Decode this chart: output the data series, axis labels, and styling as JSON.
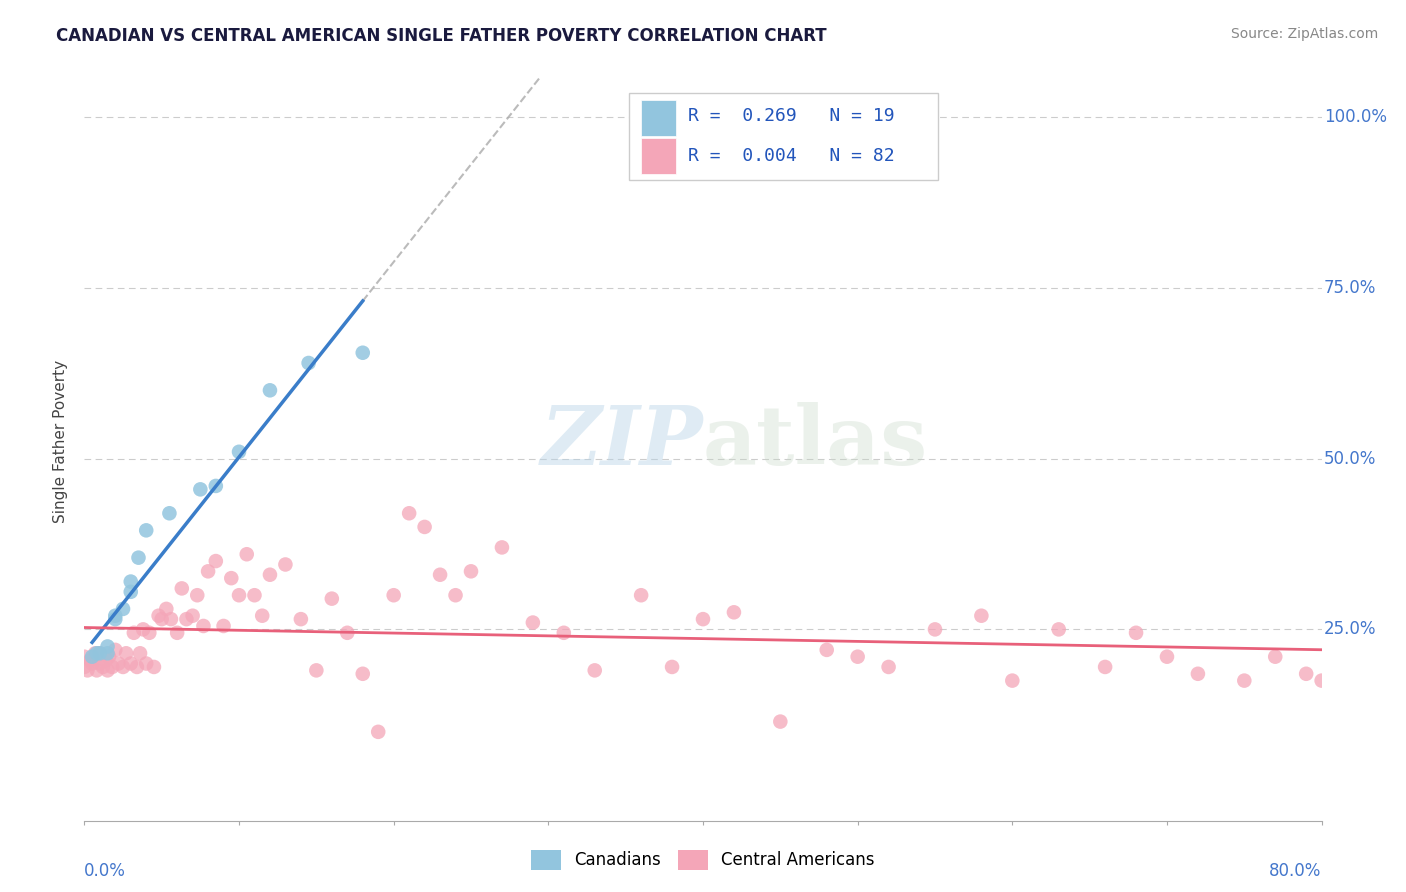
{
  "title": "CANADIAN VS CENTRAL AMERICAN SINGLE FATHER POVERTY CORRELATION CHART",
  "source": "Source: ZipAtlas.com",
  "ylabel": "Single Father Poverty",
  "xmin": 0.0,
  "xmax": 0.8,
  "ymin": -0.03,
  "ymax": 1.08,
  "blue_color": "#92c5de",
  "pink_color": "#f4a6b8",
  "blue_line_color": "#3a7dc9",
  "pink_line_color": "#e8607a",
  "blue_line_start_y": 0.195,
  "blue_slope": 1.65,
  "pink_slope": -0.01,
  "pink_intercept": 0.215,
  "watermark_zip": "ZIP",
  "watermark_atlas": "atlas",
  "legend_blue_r": "R =  0.269",
  "legend_blue_n": "N = 19",
  "legend_pink_r": "R =  0.004",
  "legend_pink_n": "N = 82",
  "canadians_x": [
    0.005,
    0.008,
    0.01,
    0.015,
    0.015,
    0.02,
    0.02,
    0.025,
    0.03,
    0.03,
    0.035,
    0.04,
    0.055,
    0.075,
    0.085,
    0.1,
    0.12,
    0.145,
    0.18
  ],
  "canadians_y": [
    0.21,
    0.215,
    0.215,
    0.215,
    0.225,
    0.265,
    0.27,
    0.28,
    0.305,
    0.32,
    0.355,
    0.395,
    0.42,
    0.455,
    0.46,
    0.51,
    0.6,
    0.64,
    0.655
  ],
  "central_x": [
    0.0,
    0.0,
    0.002,
    0.004,
    0.005,
    0.007,
    0.008,
    0.01,
    0.01,
    0.012,
    0.014,
    0.015,
    0.016,
    0.018,
    0.02,
    0.022,
    0.025,
    0.027,
    0.03,
    0.032,
    0.034,
    0.036,
    0.038,
    0.04,
    0.042,
    0.045,
    0.048,
    0.05,
    0.053,
    0.056,
    0.06,
    0.063,
    0.066,
    0.07,
    0.073,
    0.077,
    0.08,
    0.085,
    0.09,
    0.095,
    0.1,
    0.105,
    0.11,
    0.115,
    0.12,
    0.13,
    0.14,
    0.15,
    0.16,
    0.17,
    0.18,
    0.19,
    0.2,
    0.21,
    0.22,
    0.23,
    0.24,
    0.25,
    0.27,
    0.29,
    0.31,
    0.33,
    0.36,
    0.38,
    0.4,
    0.42,
    0.45,
    0.48,
    0.5,
    0.52,
    0.55,
    0.58,
    0.6,
    0.63,
    0.66,
    0.68,
    0.7,
    0.72,
    0.75,
    0.77,
    0.79,
    0.8
  ],
  "central_y": [
    0.195,
    0.21,
    0.19,
    0.205,
    0.2,
    0.215,
    0.19,
    0.2,
    0.215,
    0.195,
    0.205,
    0.19,
    0.21,
    0.195,
    0.22,
    0.2,
    0.195,
    0.215,
    0.2,
    0.245,
    0.195,
    0.215,
    0.25,
    0.2,
    0.245,
    0.195,
    0.27,
    0.265,
    0.28,
    0.265,
    0.245,
    0.31,
    0.265,
    0.27,
    0.3,
    0.255,
    0.335,
    0.35,
    0.255,
    0.325,
    0.3,
    0.36,
    0.3,
    0.27,
    0.33,
    0.345,
    0.265,
    0.19,
    0.295,
    0.245,
    0.185,
    0.1,
    0.3,
    0.42,
    0.4,
    0.33,
    0.3,
    0.335,
    0.37,
    0.26,
    0.245,
    0.19,
    0.3,
    0.195,
    0.265,
    0.275,
    0.115,
    0.22,
    0.21,
    0.195,
    0.25,
    0.27,
    0.175,
    0.25,
    0.195,
    0.245,
    0.21,
    0.185,
    0.175,
    0.21,
    0.185,
    0.175
  ]
}
